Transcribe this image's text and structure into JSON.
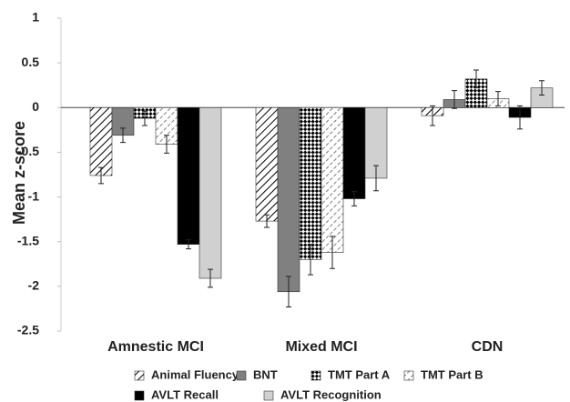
{
  "chart_data": {
    "type": "bar",
    "y_label": "Mean z-score",
    "categories": [
      "Amnestic MCI",
      "Mixed MCI",
      "CDN"
    ],
    "ylim": [
      -2.5,
      1
    ],
    "yticks": [
      1,
      0.5,
      0,
      -0.5,
      -1,
      -1.5,
      -2,
      -2.5
    ],
    "series": [
      {
        "name": "Animal Fluency",
        "color": "#000000",
        "pattern": "hatch",
        "values": [
          -0.76,
          -1.27,
          -0.09
        ],
        "errors": [
          0.09,
          0.07,
          0.11
        ]
      },
      {
        "name": "BNT",
        "color": "#808080",
        "pattern": "solid",
        "values": [
          -0.31,
          -2.06,
          0.09
        ],
        "errors": [
          0.08,
          0.17,
          0.1
        ]
      },
      {
        "name": "TMT Part A",
        "color": "#000000",
        "pattern": "checker",
        "values": [
          -0.12,
          -1.7,
          0.32
        ],
        "errors": [
          0.08,
          0.17,
          0.1
        ]
      },
      {
        "name": "TMT Part B",
        "color": "#555555",
        "pattern": "dashhatch",
        "values": [
          -0.41,
          -1.62,
          0.1
        ],
        "errors": [
          0.1,
          0.18,
          0.08
        ]
      },
      {
        "name": "AVLT Recall",
        "color": "#000000",
        "pattern": "solid",
        "values": [
          -1.53,
          -1.02,
          -0.11
        ],
        "errors": [
          0.05,
          0.08,
          0.13
        ]
      },
      {
        "name": "AVLT Recognition",
        "color": "#d0d0d0",
        "pattern": "solid",
        "values": [
          -1.91,
          -0.79,
          0.22
        ],
        "errors": [
          0.1,
          0.14,
          0.08
        ]
      }
    ]
  }
}
